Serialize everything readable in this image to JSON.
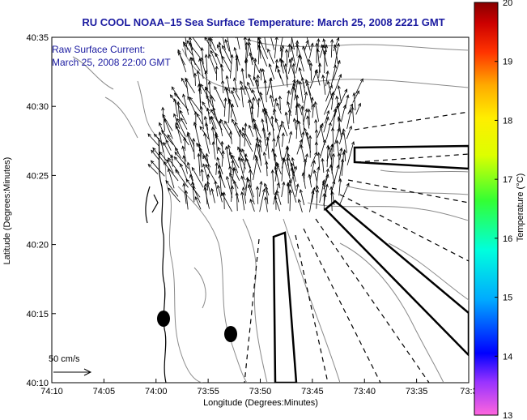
{
  "title": "RU COOL  NOAA–15  Sea Surface Temperature:  March 25, 2008 2221 GMT",
  "annotation_line1": "Raw Surface Current:",
  "annotation_line2": "March 25, 2008 22:00 GMT",
  "scale_label": "50 cm/s",
  "xlabel": "Longitude (Degrees:Minutes)",
  "ylabel": "Latitude (Degrees:Minutes)",
  "colorbar_label": "Temperature (°C)",
  "x_ticks": [
    "74:10",
    "74:05",
    "74:00",
    "73:55",
    "73:50",
    "73:45",
    "73:40",
    "73:35",
    "73:3"
  ],
  "y_ticks": [
    "40:35",
    "40:30",
    "40:25",
    "40:20",
    "40:15",
    "40:10"
  ],
  "cbar_ticks": [
    "20",
    "19",
    "18",
    "17",
    "16",
    "15",
    "14",
    "13"
  ],
  "colors": {
    "title": "#1a1aa0",
    "annotation": "#1a1aa0",
    "frame": "#000000",
    "contour": "#808080",
    "coast": "#000000"
  },
  "colormap": [
    "#ff33cc",
    "#9933ff",
    "#0000ff",
    "#00ccff",
    "#00ffcc",
    "#33ff66",
    "#ccff00",
    "#ffff00",
    "#ffaa00",
    "#ff4400",
    "#cc0000",
    "#800000"
  ]
}
